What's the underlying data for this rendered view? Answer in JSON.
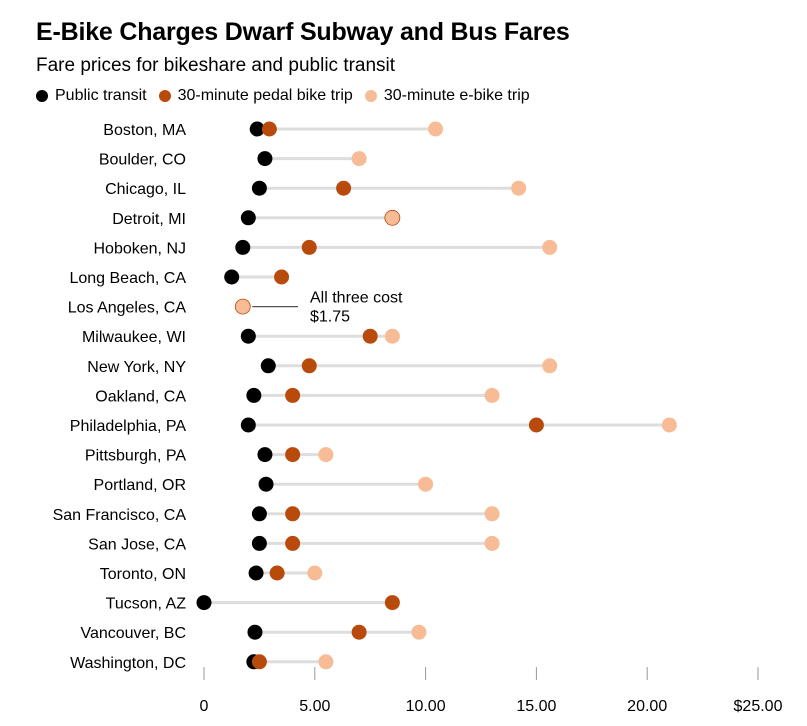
{
  "title": "E-Bike Charges Dwarf Subway and Bus Fares",
  "subtitle": "Fare prices for bikeshare and public transit",
  "colors": {
    "transit": "#000000",
    "pedal": "#b84a0c",
    "ebike": "#f7bb95",
    "connector": "#dddddd",
    "axis": "#999999"
  },
  "chart_data": {
    "type": "dot",
    "series": [
      {
        "key": "transit",
        "name": "Public transit"
      },
      {
        "key": "pedal",
        "name": "30-minute pedal bike trip"
      },
      {
        "key": "ebike",
        "name": "30-minute e-bike trip"
      }
    ],
    "xlim": [
      0,
      25
    ],
    "xticks": [
      {
        "value": 0,
        "label": "0"
      },
      {
        "value": 5,
        "label": "5.00"
      },
      {
        "value": 10,
        "label": "10.00"
      },
      {
        "value": 15,
        "label": "15.00"
      },
      {
        "value": 20,
        "label": "20.00"
      },
      {
        "value": 25,
        "label": "$25.00"
      }
    ],
    "cities": [
      {
        "name": "Boston, MA",
        "transit": 2.4,
        "pedal": 2.95,
        "ebike": 10.45
      },
      {
        "name": "Boulder, CO",
        "transit": 2.75,
        "pedal": null,
        "ebike": 7.0
      },
      {
        "name": "Chicago, IL",
        "transit": 2.5,
        "pedal": 6.3,
        "ebike": 14.2
      },
      {
        "name": "Detroit, MI",
        "transit": 2.0,
        "pedal": 8.5,
        "ebike": 8.5
      },
      {
        "name": "Hoboken, NJ",
        "transit": 1.75,
        "pedal": 4.75,
        "ebike": 15.6
      },
      {
        "name": "Long Beach, CA",
        "transit": 1.25,
        "pedal": 3.5,
        "ebike": null
      },
      {
        "name": "Los Angeles, CA",
        "transit": 1.75,
        "pedal": 1.75,
        "ebike": 1.75
      },
      {
        "name": "Milwaukee, WI",
        "transit": 2.0,
        "pedal": 7.5,
        "ebike": 8.5
      },
      {
        "name": "New York, NY",
        "transit": 2.9,
        "pedal": 4.75,
        "ebike": 15.6
      },
      {
        "name": "Oakland, CA",
        "transit": 2.25,
        "pedal": 4.0,
        "ebike": 13.0
      },
      {
        "name": "Philadelphia, PA",
        "transit": 2.0,
        "pedal": 15.0,
        "ebike": 21.0
      },
      {
        "name": "Pittsburgh, PA",
        "transit": 2.75,
        "pedal": 4.0,
        "ebike": 5.5
      },
      {
        "name": "Portland, OR",
        "transit": 2.8,
        "pedal": null,
        "ebike": 10.0
      },
      {
        "name": "San Francisco, CA",
        "transit": 2.5,
        "pedal": 4.0,
        "ebike": 13.0
      },
      {
        "name": "San Jose, CA",
        "transit": 2.5,
        "pedal": 4.0,
        "ebike": 13.0
      },
      {
        "name": "Toronto, ON",
        "transit": 2.35,
        "pedal": 3.3,
        "ebike": 5.0
      },
      {
        "name": "Tucson, AZ",
        "transit": 0,
        "pedal": 8.5,
        "ebike": null
      },
      {
        "name": "Vancouver, BC",
        "transit": 2.3,
        "pedal": 7.0,
        "ebike": 9.7
      },
      {
        "name": "Washington, DC",
        "transit": 2.25,
        "pedal": 2.5,
        "ebike": 5.5
      }
    ],
    "annotation": {
      "city": "Los Angeles, CA",
      "lines": [
        "All three cost",
        "$1.75"
      ]
    }
  }
}
